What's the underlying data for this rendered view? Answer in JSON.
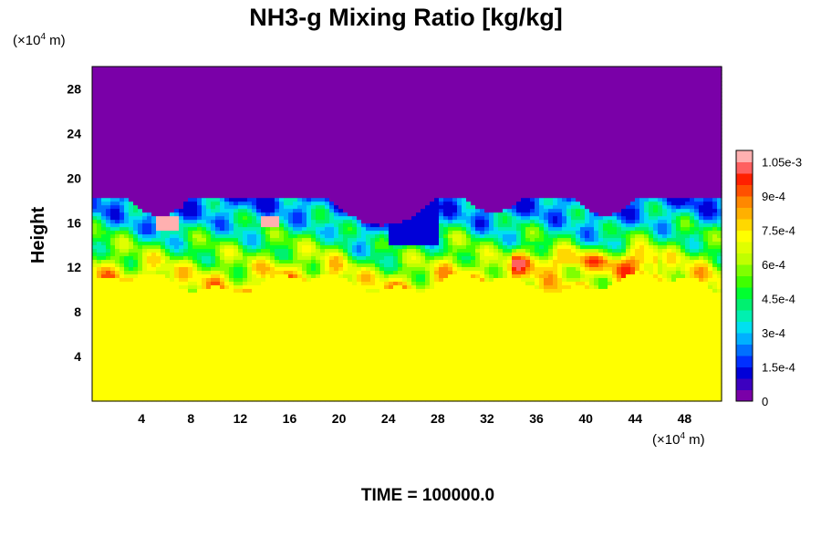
{
  "chart_data": {
    "type": "heatmap",
    "title": "NH3-g Mixing Ratio [kg/kg]",
    "ylabel": "Height",
    "x_unit": {
      "prefix": "(×10",
      "exponent": "4",
      "suffix": " m)"
    },
    "y_unit": {
      "prefix": "(×10",
      "exponent": "4",
      "suffix": " m)"
    },
    "xlim": [
      0,
      51
    ],
    "ylim": [
      0,
      30
    ],
    "x_ticks": [
      4,
      8,
      12,
      16,
      20,
      24,
      28,
      32,
      36,
      40,
      44,
      48
    ],
    "y_ticks": [
      4,
      8,
      12,
      16,
      20,
      24,
      28
    ],
    "colorbar": {
      "range": [
        0,
        0.0011
      ],
      "tick_values": [
        0,
        0.00015,
        0.0003,
        0.00045,
        0.0006,
        0.00075,
        0.0009,
        0.00105
      ],
      "tick_labels": [
        "0",
        "1.5e-4",
        "3e-4",
        "4.5e-4",
        "6e-4",
        "7.5e-4",
        "9e-4",
        "1.05e-3"
      ],
      "levels": 22,
      "colors": [
        "#7a00a8",
        "#3c00c0",
        "#0000d8",
        "#0030ff",
        "#0070ff",
        "#00b0ff",
        "#00e0f0",
        "#00f0b0",
        "#00f070",
        "#00ff30",
        "#40ff00",
        "#80ff00",
        "#c0ff00",
        "#e0ff00",
        "#ffff00",
        "#ffd800",
        "#ffb000",
        "#ff8800",
        "#ff5000",
        "#ff2000",
        "#ff6060",
        "#ffb0b0"
      ]
    },
    "regions": {
      "upper_value": 0,
      "lower_value": 0.00074,
      "mixing_value_range": [
        0.0002,
        0.00095
      ],
      "mixing_top_height": 18.2,
      "lower_top_height_range": [
        10,
        11.5
      ]
    },
    "time_label": "TIME = 100000.0"
  }
}
